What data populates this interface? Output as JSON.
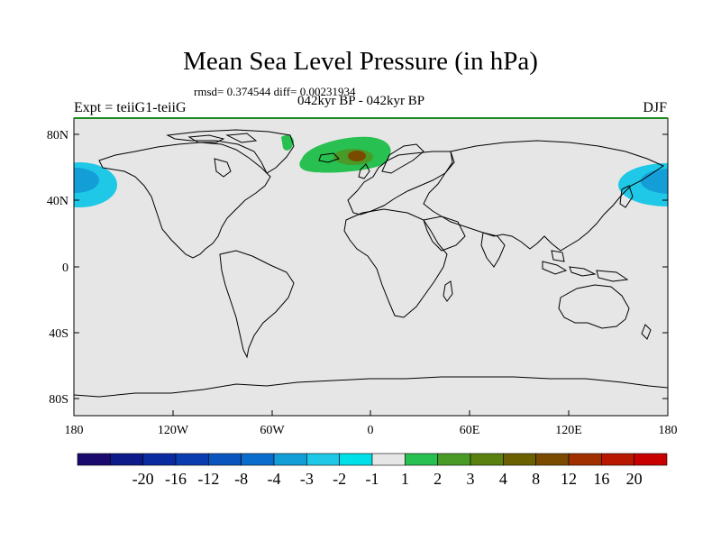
{
  "title": "Mean Sea Level Pressure (in hPa)",
  "stats": "rmsd= 0.374544 diff= 0.00231934",
  "subtitle": "042kyr BP - 042kyr BP",
  "left_label": "Expt = teiiG1-teiiG",
  "right_label": "DJF",
  "map": {
    "ocean_color": "#e6e6e6",
    "coast_color": "#000000",
    "lat_ticks": [
      "80N",
      "40N",
      "0",
      "40S",
      "80S"
    ],
    "lon_ticks": [
      "180",
      "120W",
      "60W",
      "0",
      "60E",
      "120E",
      "180"
    ]
  },
  "colorbar": {
    "colors": [
      "#1a0a6e",
      "#0d1a8a",
      "#0a2aa0",
      "#0a3cb0",
      "#0a55bd",
      "#0a6ccc",
      "#149ed8",
      "#1ec8e6",
      "#00e0e8",
      "#e6e6e6",
      "#28c050",
      "#4a9a28",
      "#5a8010",
      "#6a6000",
      "#7a4a00",
      "#a03000",
      "#b81800",
      "#c80000"
    ],
    "labels": [
      "-20",
      "-16",
      "-12",
      "-8",
      "-4",
      "-3",
      "-2",
      "-1",
      "1",
      "2",
      "3",
      "4",
      "8",
      "12",
      "16",
      "20"
    ]
  }
}
